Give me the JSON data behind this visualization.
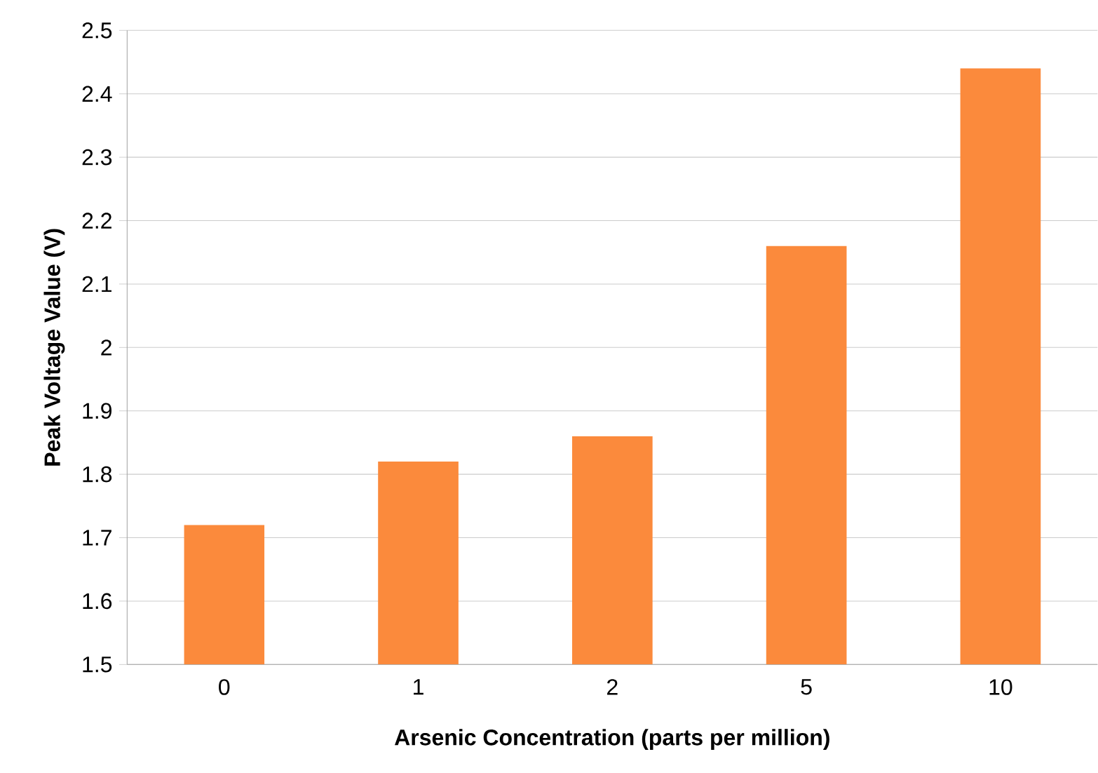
{
  "chart_data": {
    "type": "bar",
    "xlabel": "Arsenic Concentration (parts per million)",
    "ylabel": "Peak Voltage Value (V)",
    "categories": [
      "0",
      "1",
      "2",
      "5",
      "10"
    ],
    "values": [
      1.72,
      1.82,
      1.86,
      2.16,
      2.44
    ],
    "color": "#fb8a3c",
    "ylim": [
      1.5,
      2.5
    ],
    "yticks": [
      1.5,
      1.6,
      1.7,
      1.8,
      1.9,
      2,
      2.1,
      2.2,
      2.3,
      2.4,
      2.5
    ],
    "grid": "y"
  }
}
